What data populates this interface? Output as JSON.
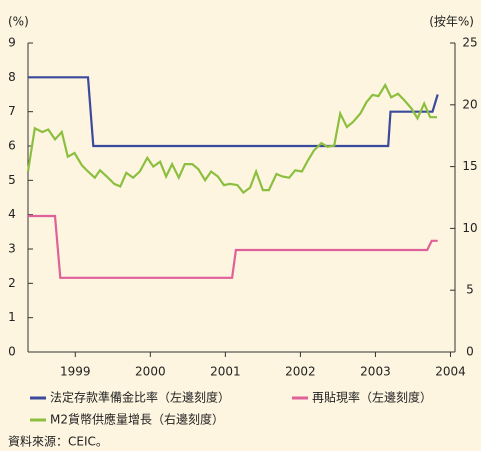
{
  "chart_data": {
    "type": "line",
    "y_label": "(%)",
    "y2_label": "(按年%)",
    "xlim": [
      1998.37,
      2004.06
    ],
    "xticks": [
      1999,
      2000,
      2001,
      2002,
      2003,
      2004
    ],
    "ylim": [
      0,
      9
    ],
    "yticks": [
      0,
      1,
      2,
      3,
      4,
      5,
      6,
      7,
      8,
      9
    ],
    "y2lim": [
      0,
      25
    ],
    "y2ticks": [
      0,
      5,
      10,
      15,
      20,
      25
    ],
    "series": [
      {
        "name": "法定存款準備金比率（左邊刻度）",
        "color": "#3a4a9c",
        "x": [
          1998.37,
          1999.17,
          1999.24,
          2003.17,
          2003.2,
          2003.76,
          2003.83
        ],
        "values": [
          8,
          8,
          6,
          6,
          7,
          7,
          7.5
        ]
      },
      {
        "name": "再貼現率（左邊刻度）",
        "color": "#e0609a",
        "x": [
          1998.37,
          1998.73,
          1998.8,
          2001.09,
          2001.14,
          2003.69,
          2003.75,
          2003.83
        ],
        "values": [
          3.96,
          3.96,
          2.16,
          2.16,
          2.97,
          2.97,
          3.24,
          3.24
        ]
      },
      {
        "name": "M2貨幣供應量增長（右邊刻度）",
        "color": "#8cbf3f",
        "axis": "y2",
        "x": [
          1998.37,
          1998.46,
          1998.56,
          1998.64,
          1998.73,
          1998.82,
          1998.9,
          1998.99,
          1999.09,
          1999.17,
          1999.26,
          1999.33,
          1999.42,
          1999.52,
          1999.6,
          1999.68,
          1999.77,
          1999.86,
          1999.96,
          2000.04,
          2000.13,
          2000.21,
          2000.29,
          2000.38,
          2000.46,
          2000.56,
          2000.64,
          2000.73,
          2000.81,
          2000.9,
          2000.98,
          2001.06,
          2001.16,
          2001.24,
          2001.33,
          2001.41,
          2001.5,
          2001.58,
          2001.68,
          2001.76,
          2001.85,
          2001.93,
          2002.02,
          2002.1,
          2002.18,
          2002.28,
          2002.36,
          2002.45,
          2002.53,
          2002.62,
          2002.7,
          2002.8,
          2002.88,
          2002.96,
          2003.04,
          2003.13,
          2003.21,
          2003.3,
          2003.38,
          2003.48,
          2003.56,
          2003.65,
          2003.73,
          2003.82
        ],
        "values": [
          14.6,
          18.1,
          17.8,
          18.0,
          17.2,
          17.8,
          15.8,
          16.1,
          15.1,
          14.6,
          14.1,
          14.7,
          14.2,
          13.6,
          13.4,
          14.5,
          14.1,
          14.6,
          15.7,
          15.0,
          15.4,
          14.2,
          15.2,
          14.1,
          15.2,
          15.2,
          14.8,
          13.9,
          14.6,
          14.2,
          13.5,
          13.6,
          13.5,
          12.9,
          13.3,
          14.6,
          13.1,
          13.1,
          14.4,
          14.2,
          14.1,
          14.7,
          14.6,
          15.5,
          16.3,
          16.9,
          16.6,
          16.7,
          19.3,
          18.2,
          18.6,
          19.3,
          20.2,
          20.8,
          20.7,
          21.6,
          20.6,
          20.9,
          20.4,
          19.7,
          18.9,
          20.1,
          19.0,
          19.0
        ]
      }
    ],
    "source": "資料來源：CEIC。"
  }
}
